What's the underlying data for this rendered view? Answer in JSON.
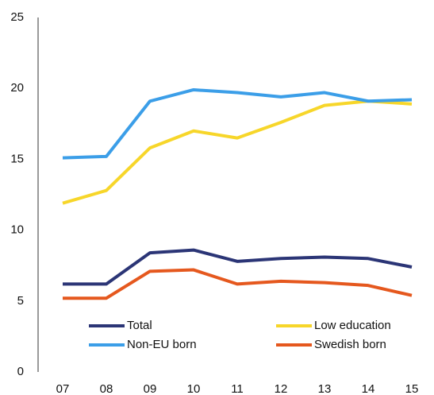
{
  "chart_data": {
    "type": "line",
    "categories": [
      "07",
      "08",
      "09",
      "10",
      "11",
      "12",
      "13",
      "14",
      "15"
    ],
    "series": [
      {
        "name": "Total",
        "color": "#2b3576",
        "values": [
          6.2,
          6.2,
          8.4,
          8.6,
          7.8,
          8.0,
          8.1,
          8.0,
          7.4
        ]
      },
      {
        "name": "Low education",
        "color": "#f7d62a",
        "values": [
          11.9,
          12.8,
          15.8,
          17.0,
          16.5,
          17.6,
          18.8,
          19.1,
          18.9
        ]
      },
      {
        "name": "Non-EU born",
        "color": "#3b9ee8",
        "values": [
          15.1,
          15.2,
          19.1,
          19.9,
          19.7,
          19.4,
          19.7,
          19.1,
          19.2
        ]
      },
      {
        "name": "Swedish born",
        "color": "#e5581e",
        "values": [
          5.2,
          5.2,
          7.1,
          7.2,
          6.2,
          6.4,
          6.3,
          6.1,
          5.4
        ]
      }
    ],
    "ylim": [
      0,
      25
    ],
    "yticks": [
      0,
      5,
      10,
      15,
      20,
      25
    ],
    "grid": false
  }
}
